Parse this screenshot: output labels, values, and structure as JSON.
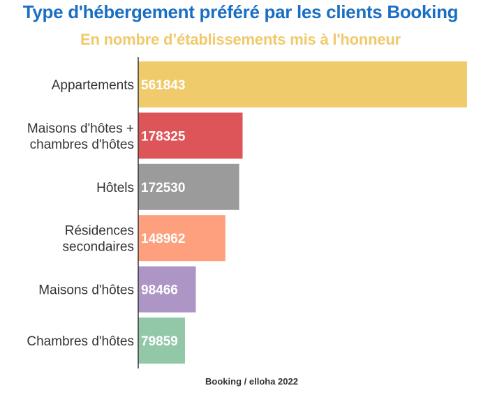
{
  "chart_data": {
    "type": "bar",
    "orientation": "horizontal",
    "title": "Type d'hébergement préféré par les clients Booking",
    "subtitle": "En nombre d’établissements mis à l'honneur",
    "source": "Booking / elloha 2022",
    "categories": [
      [
        "Appartements"
      ],
      [
        "Maisons d'hôtes +",
        "chambres d'hôtes"
      ],
      [
        "Hôtels"
      ],
      [
        "Résidences",
        "secondaires"
      ],
      [
        "Maisons d'hôtes"
      ],
      [
        "Chambres d'hôtes"
      ]
    ],
    "values": [
      561843,
      178325,
      172530,
      148962,
      98466,
      79859
    ],
    "value_labels": [
      "561843",
      "178325",
      "172530",
      "148962",
      "98466",
      "79859"
    ],
    "colors": [
      "#f0cb6c",
      "#de5559",
      "#9b9b9b",
      "#fea07e",
      "#ad95c6",
      "#92c7a8"
    ],
    "xlim": [
      0,
      561843
    ],
    "grid": false,
    "legend": "none"
  }
}
